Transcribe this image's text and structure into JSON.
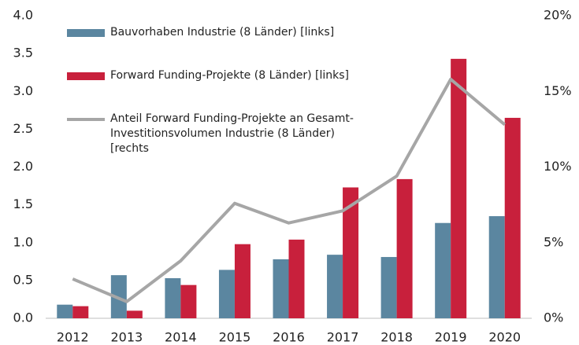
{
  "chart_data": {
    "type": "bar",
    "categories": [
      "2012",
      "2013",
      "2014",
      "2015",
      "2016",
      "2017",
      "2018",
      "2019",
      "2020"
    ],
    "series": [
      {
        "name": "Bauvorhaben Industrie (8 Länder) [links]",
        "color": "#5b86a0",
        "type": "bar",
        "values": [
          0.18,
          0.57,
          0.53,
          0.64,
          0.78,
          0.84,
          0.81,
          1.26,
          1.35
        ]
      },
      {
        "name": "Forward Funding-Projekte (8 Länder) [links]",
        "color": "#c8203c",
        "type": "bar",
        "values": [
          0.16,
          0.1,
          0.44,
          0.98,
          1.04,
          1.73,
          1.84,
          3.43,
          2.65
        ]
      },
      {
        "name": "Anteil Forward Funding-Projekte an Gesamt-Investitionsvolumen Industrie (8 Länder) [rechts",
        "color": "#a6a6a6",
        "type": "line",
        "axis": "y2",
        "values": [
          2.6,
          1.1,
          3.8,
          7.6,
          6.3,
          7.1,
          9.4,
          15.8,
          12.8
        ]
      }
    ],
    "ylim": [
      0,
      4
    ],
    "yticks": [
      {
        "value": 0,
        "label": "0.0"
      },
      {
        "value": 0.5,
        "label": "0.5"
      },
      {
        "value": 1,
        "label": "1.0"
      },
      {
        "value": 1.5,
        "label": "1.5"
      },
      {
        "value": 2,
        "label": "2.0"
      },
      {
        "value": 2.5,
        "label": "2.5"
      },
      {
        "value": 3,
        "label": "3.0"
      },
      {
        "value": 3.5,
        "label": "3.5"
      },
      {
        "value": 4,
        "label": "4.0"
      }
    ],
    "y2lim": [
      0,
      20
    ],
    "y2ticks": [
      {
        "value": 0,
        "label": "0%"
      },
      {
        "value": 5,
        "label": "5%"
      },
      {
        "value": 10,
        "label": "10%"
      },
      {
        "value": 15,
        "label": "15%"
      },
      {
        "value": 20,
        "label": "20%"
      }
    ],
    "legend": "upper left"
  }
}
